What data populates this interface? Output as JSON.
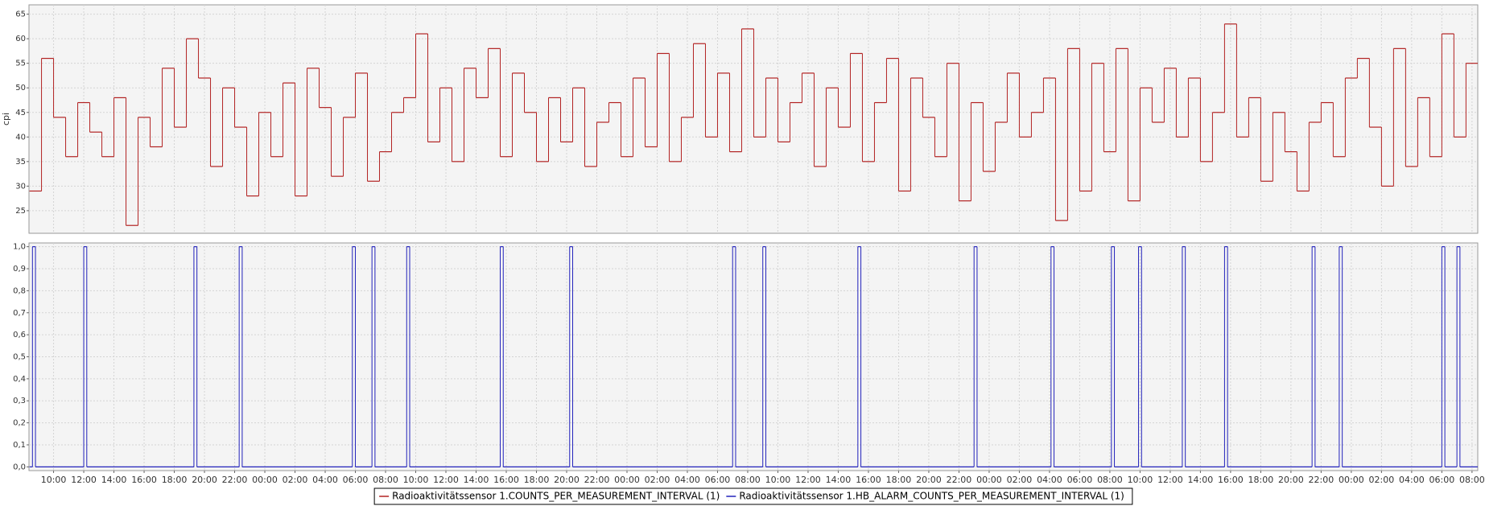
{
  "chart_data": [
    {
      "type": "step",
      "ylabel": "cpi",
      "xlim": [
        8.37,
        104.38
      ],
      "ylim": [
        20.4,
        66.9
      ],
      "yticks": [
        25,
        30,
        35,
        40,
        45,
        50,
        55,
        60,
        65
      ],
      "grid": true,
      "x": [
        8.4,
        9.2,
        10,
        10.8,
        11.6,
        12.4,
        13.2,
        14,
        14.8,
        15.6,
        16.4,
        17.2,
        18,
        18.8,
        19.6,
        20.4,
        21.2,
        22,
        22.8,
        23.6,
        24.4,
        25.2,
        26,
        26.8,
        27.6,
        28.4,
        29.2,
        30,
        30.8,
        31.6,
        32.4,
        33.2,
        34,
        34.8,
        35.6,
        36.4,
        37.2,
        38,
        38.8,
        39.6,
        40.4,
        41.2,
        42,
        42.8,
        43.6,
        44.4,
        45.2,
        46,
        46.8,
        47.6,
        48.4,
        49.2,
        50,
        50.8,
        51.6,
        52.4,
        53.2,
        54,
        54.8,
        55.6,
        56.4,
        57.2,
        58,
        58.8,
        59.6,
        60.4,
        61.2,
        62,
        62.8,
        63.6,
        64.4,
        65.2,
        66,
        66.8,
        67.6,
        68.4,
        69.2,
        70,
        70.8,
        71.6,
        72.4,
        73.2,
        74,
        74.8,
        75.6,
        76.4,
        77.2,
        78,
        78.8,
        79.6,
        80.4,
        81.2,
        82,
        82.8,
        83.6,
        84.4,
        85.2,
        86,
        86.8,
        87.6,
        88.4,
        89.2,
        90,
        90.8,
        91.6,
        92.4,
        93.2,
        94,
        94.8,
        95.6,
        96.4,
        97.2,
        98,
        98.8,
        99.6,
        100.4,
        101.2,
        102,
        102.8,
        103.6
      ],
      "series": [
        {
          "name": "Radioaktivitätssensor 1.COUNTS_PER_MEASUREMENT_INTERVAL (1)",
          "color": "#b22222",
          "values": [
            29,
            56,
            44,
            36,
            47,
            41,
            36,
            48,
            22,
            44,
            38,
            54,
            42,
            60,
            52,
            34,
            50,
            42,
            28,
            45,
            36,
            51,
            28,
            54,
            46,
            32,
            44,
            53,
            31,
            37,
            45,
            48,
            61,
            39,
            50,
            35,
            54,
            48,
            58,
            36,
            53,
            45,
            35,
            48,
            39,
            50,
            34,
            43,
            47,
            36,
            52,
            38,
            57,
            35,
            44,
            59,
            40,
            53,
            37,
            62,
            40,
            52,
            39,
            47,
            53,
            34,
            50,
            42,
            57,
            35,
            47,
            56,
            29,
            52,
            44,
            36,
            55,
            27,
            47,
            33,
            43,
            53,
            40,
            45,
            52,
            23,
            58,
            29,
            55,
            37,
            58,
            27,
            50,
            43,
            54,
            40,
            52,
            35,
            45,
            63,
            40,
            48,
            31,
            45,
            37,
            29,
            43,
            47,
            36,
            52,
            56,
            42,
            30,
            58,
            34,
            48,
            36,
            61,
            40,
            55
          ]
        }
      ]
    },
    {
      "type": "step",
      "xlim": [
        8.37,
        104.38
      ],
      "ylim": [
        -0.017,
        1.017
      ],
      "xticks": [
        {
          "value": 10,
          "label": "10:00"
        },
        {
          "value": 12,
          "label": "12:00"
        },
        {
          "value": 14,
          "label": "14:00"
        },
        {
          "value": 16,
          "label": "16:00"
        },
        {
          "value": 18,
          "label": "18:00"
        },
        {
          "value": 20,
          "label": "20:00"
        },
        {
          "value": 22,
          "label": "22:00"
        },
        {
          "value": 24,
          "label": "00:00"
        },
        {
          "value": 26,
          "label": "02:00"
        },
        {
          "value": 28,
          "label": "04:00"
        },
        {
          "value": 30,
          "label": "06:00"
        },
        {
          "value": 32,
          "label": "08:00"
        },
        {
          "value": 34,
          "label": "10:00"
        },
        {
          "value": 36,
          "label": "12:00"
        },
        {
          "value": 38,
          "label": "14:00"
        },
        {
          "value": 40,
          "label": "16:00"
        },
        {
          "value": 42,
          "label": "18:00"
        },
        {
          "value": 44,
          "label": "20:00"
        },
        {
          "value": 46,
          "label": "22:00"
        },
        {
          "value": 48,
          "label": "00:00"
        },
        {
          "value": 50,
          "label": "02:00"
        },
        {
          "value": 52,
          "label": "04:00"
        },
        {
          "value": 54,
          "label": "06:00"
        },
        {
          "value": 56,
          "label": "08:00"
        },
        {
          "value": 58,
          "label": "10:00"
        },
        {
          "value": 60,
          "label": "12:00"
        },
        {
          "value": 62,
          "label": "14:00"
        },
        {
          "value": 64,
          "label": "16:00"
        },
        {
          "value": 66,
          "label": "18:00"
        },
        {
          "value": 68,
          "label": "20:00"
        },
        {
          "value": 70,
          "label": "22:00"
        },
        {
          "value": 72,
          "label": "00:00"
        },
        {
          "value": 74,
          "label": "02:00"
        },
        {
          "value": 76,
          "label": "04:00"
        },
        {
          "value": 78,
          "label": "06:00"
        },
        {
          "value": 80,
          "label": "08:00"
        },
        {
          "value": 82,
          "label": "10:00"
        },
        {
          "value": 84,
          "label": "12:00"
        },
        {
          "value": 86,
          "label": "14:00"
        },
        {
          "value": 88,
          "label": "16:00"
        },
        {
          "value": 90,
          "label": "18:00"
        },
        {
          "value": 92,
          "label": "20:00"
        },
        {
          "value": 94,
          "label": "22:00"
        },
        {
          "value": 96,
          "label": "00:00"
        },
        {
          "value": 98,
          "label": "02:00"
        },
        {
          "value": 100,
          "label": "04:00"
        },
        {
          "value": 102,
          "label": "06:00"
        },
        {
          "value": 104,
          "label": "08:00"
        }
      ],
      "yticks": [
        {
          "value": 0,
          "label": "0,0"
        },
        {
          "value": 0.1,
          "label": "0,1"
        },
        {
          "value": 0.2,
          "label": "0,2"
        },
        {
          "value": 0.3,
          "label": "0,3"
        },
        {
          "value": 0.4,
          "label": "0,4"
        },
        {
          "value": 0.5,
          "label": "0,5"
        },
        {
          "value": 0.6,
          "label": "0,6"
        },
        {
          "value": 0.7,
          "label": "0,7"
        },
        {
          "value": 0.8,
          "label": "0,8"
        },
        {
          "value": 0.9,
          "label": "0,9"
        },
        {
          "value": 1,
          "label": "1,0"
        }
      ],
      "grid": true,
      "legend": "bottom",
      "x": [
        8.4,
        8.6,
        8.8,
        12.0,
        12.2,
        19.3,
        19.5,
        22.3,
        22.5,
        29.8,
        30.0,
        31.1,
        31.3,
        33.4,
        33.6,
        39.6,
        39.8,
        44.2,
        44.4,
        55.0,
        55.2,
        57.0,
        57.2,
        63.3,
        63.5,
        71.0,
        71.2,
        76.1,
        76.3,
        80.1,
        80.3,
        81.9,
        82.1,
        84.8,
        85.0,
        87.6,
        87.8,
        93.4,
        93.6,
        95.2,
        95.4,
        102.0,
        102.2,
        103.0,
        103.2
      ],
      "series": [
        {
          "name": "Radioaktivitätssensor 1.HB_ALARM_COUNTS_PER_MEASUREMENT_INTERVAL (1)",
          "color": "#2222bb",
          "values": [
            0,
            1,
            0,
            1,
            0,
            1,
            0,
            1,
            0,
            1,
            0,
            1,
            0,
            1,
            0,
            1,
            0,
            1,
            0,
            1,
            0,
            1,
            0,
            1,
            0,
            1,
            0,
            1,
            0,
            1,
            0,
            1,
            0,
            1,
            0,
            1,
            0,
            1,
            0,
            1,
            0,
            1,
            0,
            1,
            0
          ]
        }
      ]
    }
  ]
}
